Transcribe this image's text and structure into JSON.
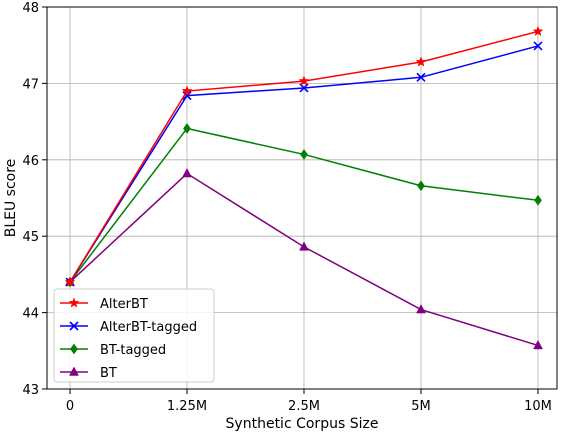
{
  "chart_data": {
    "type": "line",
    "title": "",
    "xlabel": "Synthetic Corpus Size",
    "ylabel": "BLEU score",
    "categories": [
      "0",
      "1.25M",
      "2.5M",
      "5M",
      "10M"
    ],
    "ylim": [
      43,
      48
    ],
    "yticks": [
      "43",
      "44",
      "45",
      "46",
      "47",
      "48"
    ],
    "grid": true,
    "legend_position": "lower-left",
    "series": [
      {
        "name": "AlterBT",
        "values": [
          44.4,
          46.9,
          47.03,
          47.28,
          47.68
        ],
        "color": "#ff0000",
        "marker": "star"
      },
      {
        "name": "AlterBT-tagged",
        "values": [
          44.4,
          46.84,
          46.94,
          47.08,
          47.49
        ],
        "color": "#0000ff",
        "marker": "x"
      },
      {
        "name": "BT-tagged",
        "values": [
          44.4,
          46.41,
          46.07,
          45.66,
          45.47
        ],
        "color": "#008000",
        "marker": "diamond"
      },
      {
        "name": "BT",
        "values": [
          44.4,
          45.82,
          44.86,
          44.04,
          43.57
        ],
        "color": "#800080",
        "marker": "triangle"
      }
    ]
  }
}
